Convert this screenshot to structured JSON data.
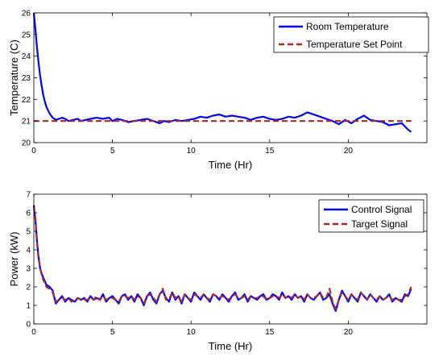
{
  "chart_data": [
    {
      "type": "line",
      "xlabel": "Time (Hr)",
      "ylabel": "Temperature (C)",
      "xlim": [
        0,
        25
      ],
      "ylim": [
        20,
        26
      ],
      "x_ticks": [
        0,
        5,
        10,
        15,
        20
      ],
      "y_ticks": [
        20,
        21,
        22,
        23,
        24,
        25,
        26
      ],
      "grid": false,
      "legend_position": "top-right",
      "series": [
        {
          "name": "Room Temperature",
          "color": "#0000ff",
          "style": "solid",
          "x": [
            0,
            0.1,
            0.2,
            0.3,
            0.4,
            0.5,
            0.6,
            0.7,
            0.8,
            0.9,
            1.0,
            1.2,
            1.4,
            1.6,
            1.8,
            2.0,
            2.2,
            2.5,
            2.8,
            3.0,
            3.3,
            3.6,
            4.0,
            4.4,
            4.8,
            5.0,
            5.3,
            5.6,
            6.0,
            6.4,
            6.8,
            7.2,
            7.6,
            8.0,
            8.3,
            8.6,
            9.0,
            9.4,
            9.8,
            10.2,
            10.6,
            11.0,
            11.4,
            11.8,
            12.2,
            12.6,
            13.0,
            13.4,
            13.8,
            14.2,
            14.6,
            15.0,
            15.4,
            15.8,
            16.2,
            16.6,
            17.0,
            17.4,
            17.8,
            18.2,
            18.6,
            19.0,
            19.4,
            19.8,
            20.2,
            20.6,
            21.0,
            21.4,
            21.8,
            22.2,
            22.6,
            23.0,
            23.4,
            23.8,
            24.0
          ],
          "y": [
            26.0,
            25.2,
            24.4,
            23.7,
            23.1,
            22.6,
            22.2,
            21.9,
            21.65,
            21.5,
            21.35,
            21.15,
            21.05,
            21.1,
            21.15,
            21.1,
            21.0,
            21.05,
            21.1,
            21.0,
            21.05,
            21.1,
            21.15,
            21.1,
            21.15,
            21.0,
            21.1,
            21.05,
            20.95,
            21.0,
            21.05,
            21.1,
            21.0,
            20.9,
            21.0,
            20.95,
            21.05,
            21.0,
            21.05,
            21.1,
            21.2,
            21.15,
            21.25,
            21.3,
            21.2,
            21.25,
            21.2,
            21.15,
            21.05,
            21.15,
            21.2,
            21.1,
            21.05,
            21.1,
            21.2,
            21.15,
            21.25,
            21.4,
            21.3,
            21.2,
            21.1,
            21.0,
            20.85,
            21.05,
            20.9,
            21.1,
            21.25,
            21.05,
            21.0,
            20.95,
            20.8,
            20.85,
            20.9,
            20.6,
            20.5
          ]
        },
        {
          "name": "Temperature Set Point",
          "color": "#a52a2a",
          "style": "dashed",
          "x": [
            0,
            24
          ],
          "y": [
            21,
            21
          ]
        }
      ]
    },
    {
      "type": "line",
      "xlabel": "Time (Hr)",
      "ylabel": "Power (kW)",
      "xlim": [
        0,
        25
      ],
      "ylim": [
        0,
        7
      ],
      "x_ticks": [
        0,
        5,
        10,
        15,
        20
      ],
      "y_ticks": [
        0,
        1,
        2,
        3,
        4,
        5,
        6,
        7
      ],
      "grid": false,
      "legend_position": "top-right",
      "series": [
        {
          "name": "Control Signal",
          "color": "#0000ff",
          "style": "solid",
          "x": [
            0,
            0.1,
            0.2,
            0.3,
            0.4,
            0.5,
            0.6,
            0.7,
            0.8,
            1.0,
            1.2,
            1.4,
            1.6,
            1.8,
            2.0,
            2.2,
            2.4,
            2.6,
            2.8,
            3.0,
            3.2,
            3.4,
            3.6,
            3.8,
            4.0,
            4.2,
            4.4,
            4.6,
            4.8,
            5.0,
            5.2,
            5.4,
            5.6,
            5.8,
            6.0,
            6.2,
            6.4,
            6.6,
            6.8,
            7.0,
            7.2,
            7.4,
            7.6,
            7.8,
            8.0,
            8.2,
            8.4,
            8.6,
            8.8,
            9.0,
            9.2,
            9.4,
            9.6,
            9.8,
            10.0,
            10.2,
            10.4,
            10.6,
            10.8,
            11.0,
            11.2,
            11.4,
            11.6,
            11.8,
            12.0,
            12.2,
            12.4,
            12.6,
            12.8,
            13.0,
            13.2,
            13.4,
            13.6,
            13.8,
            14.0,
            14.2,
            14.4,
            14.6,
            14.8,
            15.0,
            15.2,
            15.4,
            15.6,
            15.8,
            16.0,
            16.2,
            16.4,
            16.6,
            16.8,
            17.0,
            17.2,
            17.4,
            17.6,
            17.8,
            18.0,
            18.2,
            18.4,
            18.6,
            18.8,
            19.0,
            19.2,
            19.4,
            19.6,
            19.8,
            20.0,
            20.2,
            20.4,
            20.6,
            20.8,
            21.0,
            21.2,
            21.4,
            21.6,
            21.8,
            22.0,
            22.2,
            22.4,
            22.6,
            22.8,
            23.0,
            23.2,
            23.4,
            23.6,
            23.8,
            24.0
          ],
          "y": [
            6.4,
            5.6,
            4.5,
            3.6,
            3.0,
            2.7,
            2.5,
            2.3,
            2.1,
            2.0,
            1.8,
            1.1,
            1.3,
            1.5,
            1.2,
            1.4,
            1.3,
            1.2,
            1.4,
            1.3,
            1.4,
            1.2,
            1.5,
            1.3,
            1.4,
            1.3,
            1.6,
            1.2,
            1.4,
            1.5,
            1.3,
            1.1,
            1.5,
            1.6,
            1.3,
            1.5,
            1.2,
            1.6,
            1.4,
            1.0,
            1.5,
            1.7,
            1.3,
            1.1,
            1.6,
            1.8,
            1.4,
            1.2,
            1.7,
            1.3,
            1.5,
            1.1,
            1.6,
            1.4,
            1.2,
            1.7,
            1.5,
            1.3,
            1.6,
            1.4,
            1.2,
            1.6,
            1.5,
            1.3,
            1.6,
            1.4,
            1.2,
            1.5,
            1.7,
            1.3,
            1.4,
            1.6,
            1.2,
            1.5,
            1.4,
            1.3,
            1.5,
            1.6,
            1.3,
            1.4,
            1.6,
            1.5,
            1.3,
            1.7,
            1.4,
            1.5,
            1.3,
            1.6,
            1.4,
            1.5,
            1.2,
            1.6,
            1.4,
            1.3,
            1.5,
            1.7,
            1.3,
            1.4,
            1.6,
            1.1,
            0.7,
            1.3,
            1.8,
            1.5,
            1.2,
            1.6,
            1.4,
            1.2,
            1.7,
            1.5,
            1.3,
            1.6,
            1.4,
            1.2,
            1.5,
            1.3,
            1.4,
            1.6,
            1.2,
            1.4,
            1.3,
            1.2,
            1.6,
            1.5,
            1.9
          ]
        },
        {
          "name": "Target Signal",
          "color": "#a52a2a",
          "style": "dashed",
          "x": [
            0,
            0.1,
            0.2,
            0.3,
            0.4,
            0.5,
            0.6,
            0.7,
            0.8,
            1.0,
            1.2,
            1.4,
            1.6,
            1.8,
            2.0,
            2.2,
            2.4,
            2.6,
            2.8,
            3.0,
            3.2,
            3.4,
            3.6,
            3.8,
            4.0,
            4.2,
            4.4,
            4.6,
            4.8,
            5.0,
            5.2,
            5.4,
            5.6,
            5.8,
            6.0,
            6.2,
            6.4,
            6.6,
            6.8,
            7.0,
            7.2,
            7.4,
            7.6,
            7.8,
            8.0,
            8.2,
            8.4,
            8.6,
            8.8,
            9.0,
            9.2,
            9.4,
            9.6,
            9.8,
            10.0,
            10.2,
            10.4,
            10.6,
            10.8,
            11.0,
            11.2,
            11.4,
            11.6,
            11.8,
            12.0,
            12.2,
            12.4,
            12.6,
            12.8,
            13.0,
            13.2,
            13.4,
            13.6,
            13.8,
            14.0,
            14.2,
            14.4,
            14.6,
            14.8,
            15.0,
            15.2,
            15.4,
            15.6,
            15.8,
            16.0,
            16.2,
            16.4,
            16.6,
            16.8,
            17.0,
            17.2,
            17.4,
            17.6,
            17.8,
            18.0,
            18.2,
            18.4,
            18.6,
            18.8,
            19.0,
            19.2,
            19.4,
            19.6,
            19.8,
            20.0,
            20.2,
            20.4,
            20.6,
            20.8,
            21.0,
            21.2,
            21.4,
            21.6,
            21.8,
            22.0,
            22.2,
            22.4,
            22.6,
            22.8,
            23.0,
            23.2,
            23.4,
            23.6,
            23.8,
            24.0
          ],
          "y": [
            6.3,
            5.7,
            4.4,
            3.5,
            3.1,
            2.6,
            2.4,
            2.2,
            2.0,
            1.9,
            1.7,
            1.2,
            1.3,
            1.4,
            1.3,
            1.4,
            1.2,
            1.3,
            1.4,
            1.3,
            1.3,
            1.3,
            1.4,
            1.3,
            1.5,
            1.3,
            1.5,
            1.3,
            1.4,
            1.4,
            1.3,
            1.2,
            1.5,
            1.5,
            1.4,
            1.5,
            1.3,
            1.5,
            1.4,
            1.1,
            1.5,
            1.6,
            1.4,
            1.2,
            1.6,
            1.9,
            1.3,
            1.3,
            1.7,
            1.4,
            1.5,
            1.2,
            1.6,
            1.4,
            1.3,
            1.6,
            1.5,
            1.4,
            1.6,
            1.4,
            1.3,
            1.6,
            1.5,
            1.4,
            1.5,
            1.4,
            1.3,
            1.5,
            1.6,
            1.4,
            1.4,
            1.5,
            1.3,
            1.5,
            1.4,
            1.4,
            1.5,
            1.5,
            1.3,
            1.4,
            1.5,
            1.5,
            1.4,
            1.6,
            1.4,
            1.5,
            1.4,
            1.6,
            1.4,
            1.5,
            1.3,
            1.6,
            1.4,
            1.4,
            1.5,
            1.7,
            1.4,
            1.4,
            1.9,
            1.2,
            0.8,
            1.3,
            1.7,
            1.5,
            1.3,
            1.6,
            1.4,
            1.3,
            1.7,
            1.5,
            1.3,
            1.6,
            1.4,
            1.3,
            1.5,
            1.3,
            1.4,
            1.5,
            1.3,
            1.4,
            1.3,
            1.3,
            1.5,
            1.6,
            2.0
          ]
        }
      ]
    }
  ]
}
